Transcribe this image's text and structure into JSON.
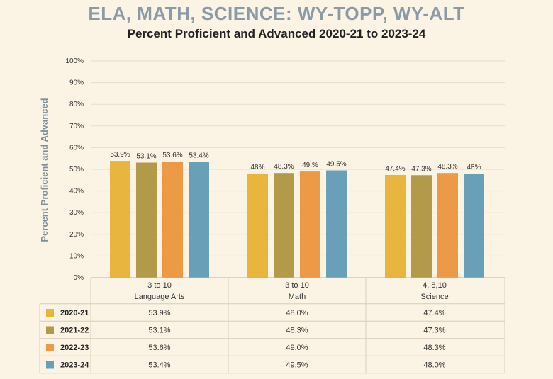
{
  "header": {
    "title": "ELA, MATH, SCIENCE: WY-TOPP, WY-ALT",
    "subtitle": "Percent Proficient and Advanced 2020-21 to 2023-24"
  },
  "chart_data": {
    "type": "bar",
    "title": "ELA, MATH, SCIENCE: WY-TOPP, WY-ALT",
    "subtitle": "Percent Proficient and Advanced 2020-21 to 2023-24",
    "ylabel": "Percent Proficient and Advanced",
    "xlabel": "",
    "ylim": [
      0,
      100
    ],
    "yticks": [
      "0%",
      "10%",
      "20%",
      "30%",
      "40%",
      "50%",
      "60%",
      "70%",
      "80%",
      "90%",
      "100%"
    ],
    "grid": true,
    "legend": "table-left",
    "categories": [
      {
        "line1": "3 to 10",
        "line2": "Language Arts"
      },
      {
        "line1": "3 to 10",
        "line2": "Math"
      },
      {
        "line1": "4, 8,10",
        "line2": "Science"
      }
    ],
    "series": [
      {
        "name": "2020-21",
        "color": "#e8b63e",
        "values": [
          53.9,
          48.0,
          47.4
        ],
        "bar_labels": [
          "53.9%",
          "48%",
          "47.4%"
        ],
        "table_values": [
          "53.9%",
          "48.0%",
          "47.4%"
        ]
      },
      {
        "name": "2021-22",
        "color": "#b39a4a",
        "values": [
          53.1,
          48.3,
          47.3
        ],
        "bar_labels": [
          "53.1%",
          "48.3%",
          "47.3%"
        ],
        "table_values": [
          "53.1%",
          "48.3%",
          "47.3%"
        ]
      },
      {
        "name": "2022-23",
        "color": "#ec9a45",
        "values": [
          53.6,
          49.0,
          48.3
        ],
        "bar_labels": [
          "53.6%",
          "49.%",
          "48.3%"
        ],
        "table_values": [
          "53.6%",
          "49.0%",
          "48.3%"
        ]
      },
      {
        "name": "2023-24",
        "color": "#6a9fb8",
        "values": [
          53.4,
          49.5,
          48.0
        ],
        "bar_labels": [
          "53.4%",
          "49.5%",
          "48%"
        ],
        "table_values": [
          "53.4%",
          "49.5%",
          "48.0%"
        ]
      }
    ]
  }
}
